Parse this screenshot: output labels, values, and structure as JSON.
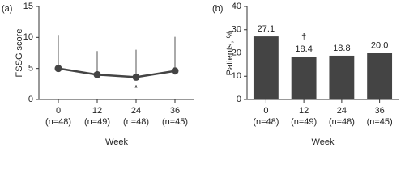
{
  "chart_data": [
    {
      "type": "line",
      "panel": "(a)",
      "ylabel": "FSSG score",
      "xlabel": "Week",
      "categories": [
        "0",
        "12",
        "24",
        "36"
      ],
      "sample_sizes": [
        "(n=48)",
        "(n=49)",
        "(n=48)",
        "(n=45)"
      ],
      "values": [
        5.0,
        4.0,
        3.6,
        4.6
      ],
      "errors": [
        5.4,
        3.8,
        4.4,
        5.5
      ],
      "color": "#444444",
      "annotation": "*",
      "ylim": [
        0,
        15
      ],
      "yticks": [
        0,
        5,
        10,
        15
      ]
    },
    {
      "type": "bar",
      "panel": "(b)",
      "ylabel": "Patients, %",
      "xlabel": "Week",
      "categories": [
        "0",
        "12",
        "24",
        "36"
      ],
      "sample_sizes": [
        "(n=48)",
        "(n=49)",
        "(n=48)",
        "(n=45)"
      ],
      "values": [
        27.1,
        18.4,
        18.8,
        20.0
      ],
      "value_labels": [
        "27.1",
        "18.4",
        "18.8",
        "20.0"
      ],
      "color": "#444444",
      "annotation": "†",
      "ylim": [
        0,
        40
      ],
      "yticks": [
        0,
        10,
        20,
        30,
        40
      ]
    }
  ]
}
